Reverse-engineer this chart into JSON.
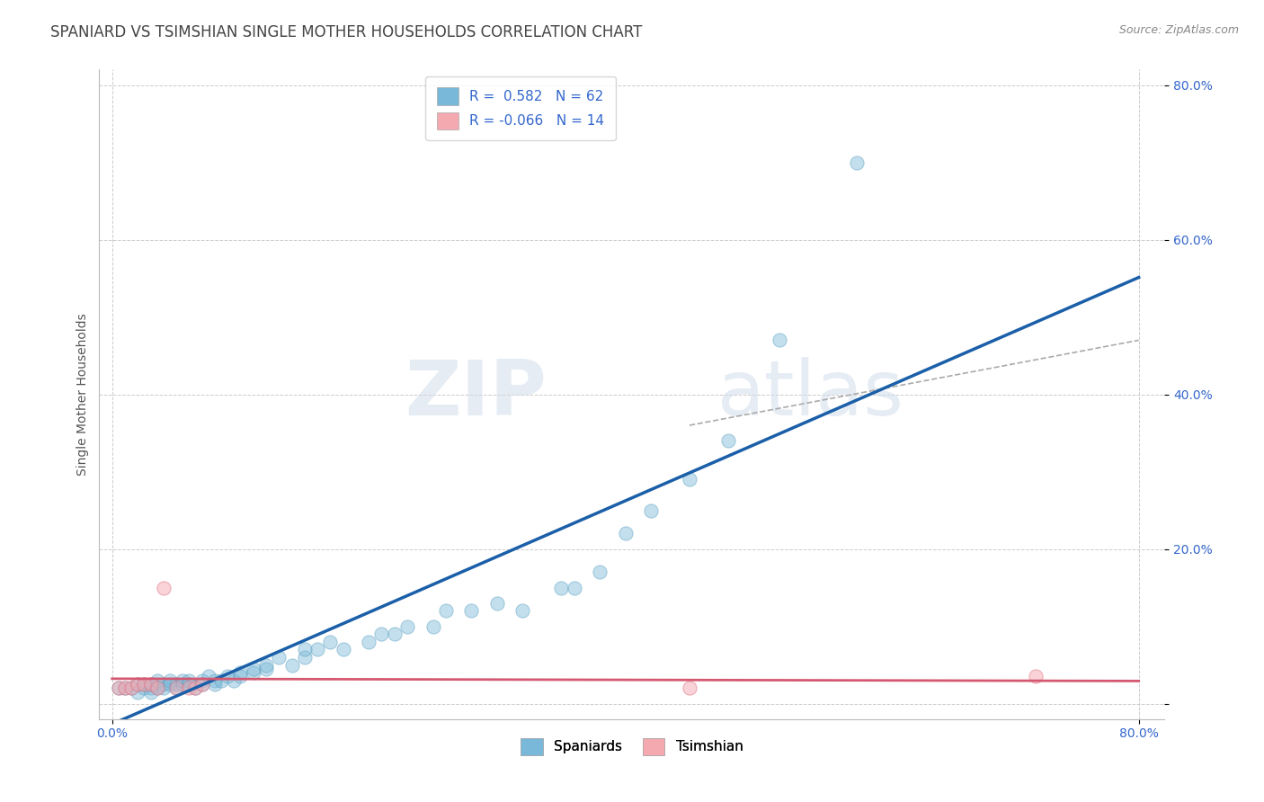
{
  "title": "SPANIARD VS TSIMSHIAN SINGLE MOTHER HOUSEHOLDS CORRELATION CHART",
  "source": "Source: ZipAtlas.com",
  "ylabel": "Single Mother Households",
  "xlim": [
    -0.01,
    0.82
  ],
  "ylim": [
    -0.02,
    0.82
  ],
  "x_ticks": [
    0.0,
    0.8
  ],
  "x_tick_labels": [
    "0.0%",
    "80.0%"
  ],
  "y_ticks": [
    0.0,
    0.2,
    0.4,
    0.6,
    0.8
  ],
  "y_tick_labels": [
    "",
    "20.0%",
    "40.0%",
    "60.0%",
    "80.0%"
  ],
  "spaniard_color": "#7ab8d9",
  "spaniard_edge": "#5a9fc0",
  "tsimshian_color": "#f4a8b0",
  "tsimshian_edge": "#e07080",
  "trend_spaniard_color": "#1a5fa8",
  "trend_tsimshian_color": "#d45870",
  "R_spaniard": 0.582,
  "N_spaniard": 62,
  "R_tsimshian": -0.066,
  "N_tsimshian": 14,
  "spaniard_x": [
    0.005,
    0.01,
    0.015,
    0.02,
    0.02,
    0.025,
    0.025,
    0.03,
    0.03,
    0.03,
    0.035,
    0.035,
    0.04,
    0.04,
    0.045,
    0.045,
    0.05,
    0.05,
    0.055,
    0.055,
    0.06,
    0.06,
    0.065,
    0.07,
    0.07,
    0.075,
    0.08,
    0.08,
    0.085,
    0.09,
    0.095,
    0.1,
    0.1,
    0.11,
    0.11,
    0.12,
    0.12,
    0.13,
    0.14,
    0.15,
    0.15,
    0.16,
    0.17,
    0.18,
    0.2,
    0.21,
    0.22,
    0.23,
    0.25,
    0.26,
    0.28,
    0.3,
    0.32,
    0.35,
    0.36,
    0.38,
    0.4,
    0.42,
    0.45,
    0.48,
    0.52,
    0.58
  ],
  "spaniard_y": [
    0.02,
    0.02,
    0.02,
    0.025,
    0.015,
    0.02,
    0.025,
    0.02,
    0.015,
    0.025,
    0.02,
    0.03,
    0.025,
    0.02,
    0.025,
    0.03,
    0.025,
    0.02,
    0.025,
    0.03,
    0.03,
    0.025,
    0.02,
    0.03,
    0.025,
    0.035,
    0.03,
    0.025,
    0.03,
    0.035,
    0.03,
    0.04,
    0.035,
    0.04,
    0.045,
    0.045,
    0.05,
    0.06,
    0.05,
    0.06,
    0.07,
    0.07,
    0.08,
    0.07,
    0.08,
    0.09,
    0.09,
    0.1,
    0.1,
    0.12,
    0.12,
    0.13,
    0.12,
    0.15,
    0.15,
    0.17,
    0.22,
    0.25,
    0.29,
    0.34,
    0.47,
    0.7
  ],
  "tsimshian_x": [
    0.005,
    0.01,
    0.015,
    0.02,
    0.025,
    0.03,
    0.035,
    0.04,
    0.05,
    0.06,
    0.065,
    0.07,
    0.45,
    0.72
  ],
  "tsimshian_y": [
    0.02,
    0.02,
    0.02,
    0.025,
    0.025,
    0.025,
    0.02,
    0.15,
    0.02,
    0.02,
    0.02,
    0.025,
    0.02,
    0.035
  ],
  "watermark_zip": "ZIP",
  "watermark_atlas": "atlas",
  "title_fontsize": 12,
  "axis_label_fontsize": 10,
  "tick_fontsize": 10,
  "background_color": "#ffffff",
  "grid_color": "#cccccc"
}
